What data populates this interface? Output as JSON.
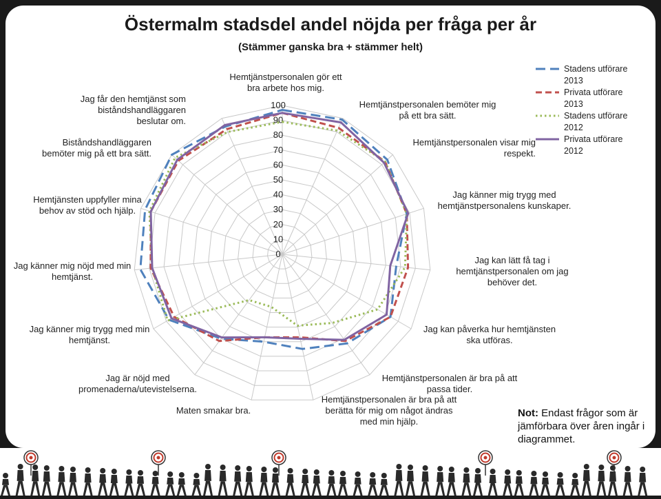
{
  "title": "Östermalm stadsdel andel nöjda per fråga per år",
  "subtitle": "(Stämmer ganska bra + stämmer helt)",
  "note": {
    "bold": "Not:",
    "text": " Endast frågor som är jämförbara över åren ingår i diagrammet."
  },
  "colors": {
    "stad2013": "#4f81bd",
    "priv2013": "#c0504d",
    "stad2012": "#9bbb59",
    "priv2012": "#8064a2",
    "grid": "#c8c8c8"
  },
  "chart_data": {
    "type": "radar",
    "title": "Östermalm stadsdel andel nöjda per fråga per år",
    "subtitle": "(Stämmer ganska bra + stämmer helt)",
    "range": [
      0,
      100
    ],
    "ticks": [
      "0",
      "10",
      "20",
      "30",
      "40",
      "50",
      "60",
      "70",
      "80",
      "90",
      "100"
    ],
    "grid": true,
    "legend_position": "top-right",
    "categories": [
      "Hemtjänstpersonalen gör ett bra arbete hos mig.",
      "Hemtjänstpersonalen bemöter mig på ett bra sätt.",
      "Hemtjänstpersonalen visar mig respekt.",
      "Jag känner mig trygg med hemtjänstpersonalens kunskaper.",
      "Jag kan lätt få tag i hemtjänstpersonalen om jag behöver det.",
      "Jag kan påverka hur hemtjänsten ska utföras.",
      "Hemtjänstpersonalen är bra på att passa tider.",
      "Hemtjänstpersonalen är bra på att berätta för mig om något ändras med min hjälp.",
      "Maten smakar bra.",
      "Jag är nöjd med promenaderna/utevistelserna.",
      "Jag känner mig trygg med min hemtjänst.",
      "Jag känner mig nöjd med min hemtjänst.",
      "Hemtjänsten uppfyller mina behov av stöd och hjälp.",
      "Biståndshandläggaren bemöter mig på ett bra sätt.",
      "Jag får den hemtjänst som biståndshandläggaren beslutar om."
    ],
    "series": [
      {
        "name": "Stadens utförare 2013",
        "color": "#4f81bd",
        "dash": "14 7",
        "width": 3,
        "values": [
          97,
          99,
          95,
          88,
          77,
          84,
          74,
          65,
          60,
          70,
          88,
          96,
          97,
          100,
          94
        ]
      },
      {
        "name": "Privata utförare 2013",
        "color": "#c0504d",
        "dash": "9 5",
        "width": 3,
        "values": [
          95,
          93,
          93,
          88,
          85,
          84,
          72,
          57,
          57,
          72,
          84,
          89,
          93,
          94,
          92
        ]
      },
      {
        "name": "Stadens utförare 2012",
        "color": "#9bbb59",
        "dash": "2.5 4",
        "width": 3,
        "values": [
          89,
          91,
          93,
          88,
          83,
          74,
          57,
          49,
          36,
          38,
          89,
          88,
          94,
          97,
          90
        ]
      },
      {
        "name": "Privata utförare 2012",
        "color": "#8064a2",
        "dash": "",
        "width": 3,
        "values": [
          95,
          97,
          92,
          89,
          73,
          81,
          71,
          58,
          57,
          69,
          86,
          88,
          93,
          95,
          95
        ]
      }
    ]
  }
}
